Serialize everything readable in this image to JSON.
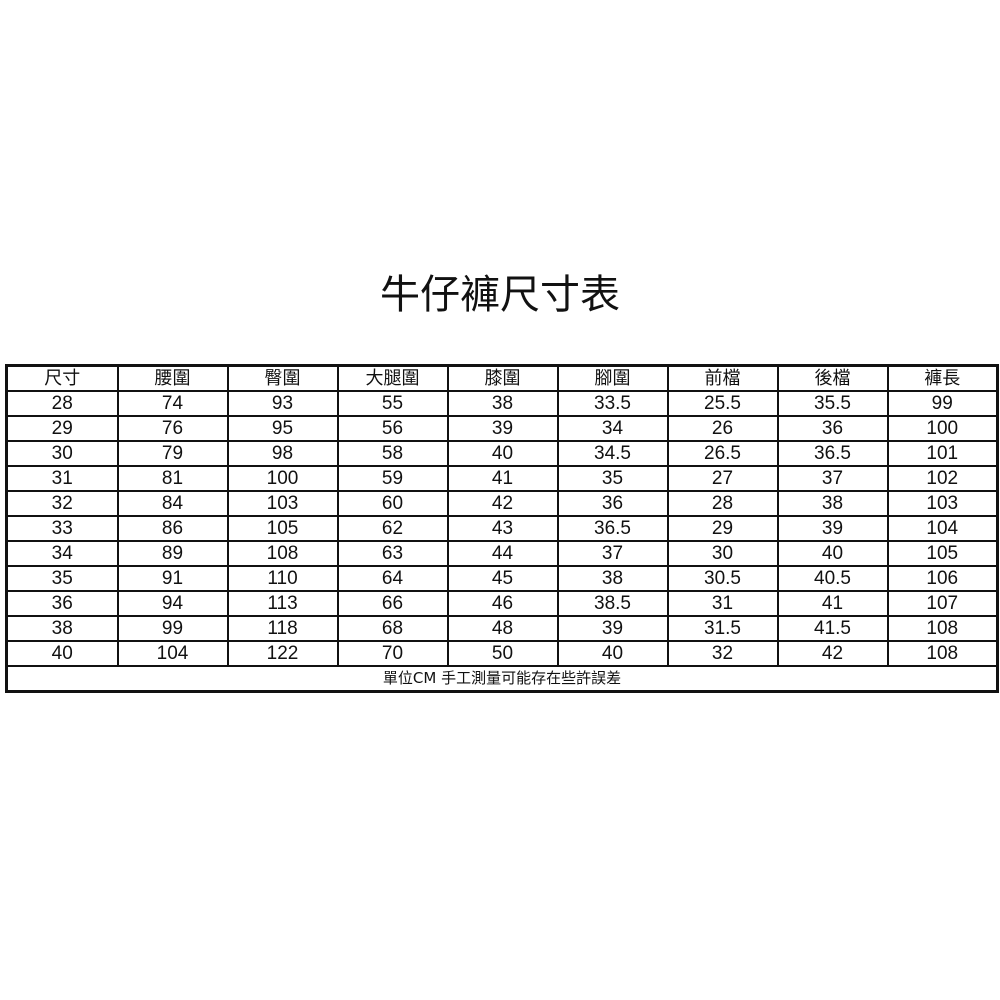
{
  "title": "牛仔褲尺寸表",
  "table": {
    "headers": [
      "尺寸",
      "腰圍",
      "臀圍",
      "大腿圍",
      "膝圍",
      "腳圍",
      "前檔",
      "後檔",
      "褲長"
    ],
    "rows": [
      [
        "28",
        "74",
        "93",
        "55",
        "38",
        "33.5",
        "25.5",
        "35.5",
        "99"
      ],
      [
        "29",
        "76",
        "95",
        "56",
        "39",
        "34",
        "26",
        "36",
        "100"
      ],
      [
        "30",
        "79",
        "98",
        "58",
        "40",
        "34.5",
        "26.5",
        "36.5",
        "101"
      ],
      [
        "31",
        "81",
        "100",
        "59",
        "41",
        "35",
        "27",
        "37",
        "102"
      ],
      [
        "32",
        "84",
        "103",
        "60",
        "42",
        "36",
        "28",
        "38",
        "103"
      ],
      [
        "33",
        "86",
        "105",
        "62",
        "43",
        "36.5",
        "29",
        "39",
        "104"
      ],
      [
        "34",
        "89",
        "108",
        "63",
        "44",
        "37",
        "30",
        "40",
        "105"
      ],
      [
        "35",
        "91",
        "110",
        "64",
        "45",
        "38",
        "30.5",
        "40.5",
        "106"
      ],
      [
        "36",
        "94",
        "113",
        "66",
        "46",
        "38.5",
        "31",
        "41",
        "107"
      ],
      [
        "38",
        "99",
        "118",
        "68",
        "48",
        "39",
        "31.5",
        "41.5",
        "108"
      ],
      [
        "40",
        "104",
        "122",
        "70",
        "50",
        "40",
        "32",
        "42",
        "108"
      ]
    ],
    "footnote": "單位CM  手工測量可能存在些許誤差"
  }
}
